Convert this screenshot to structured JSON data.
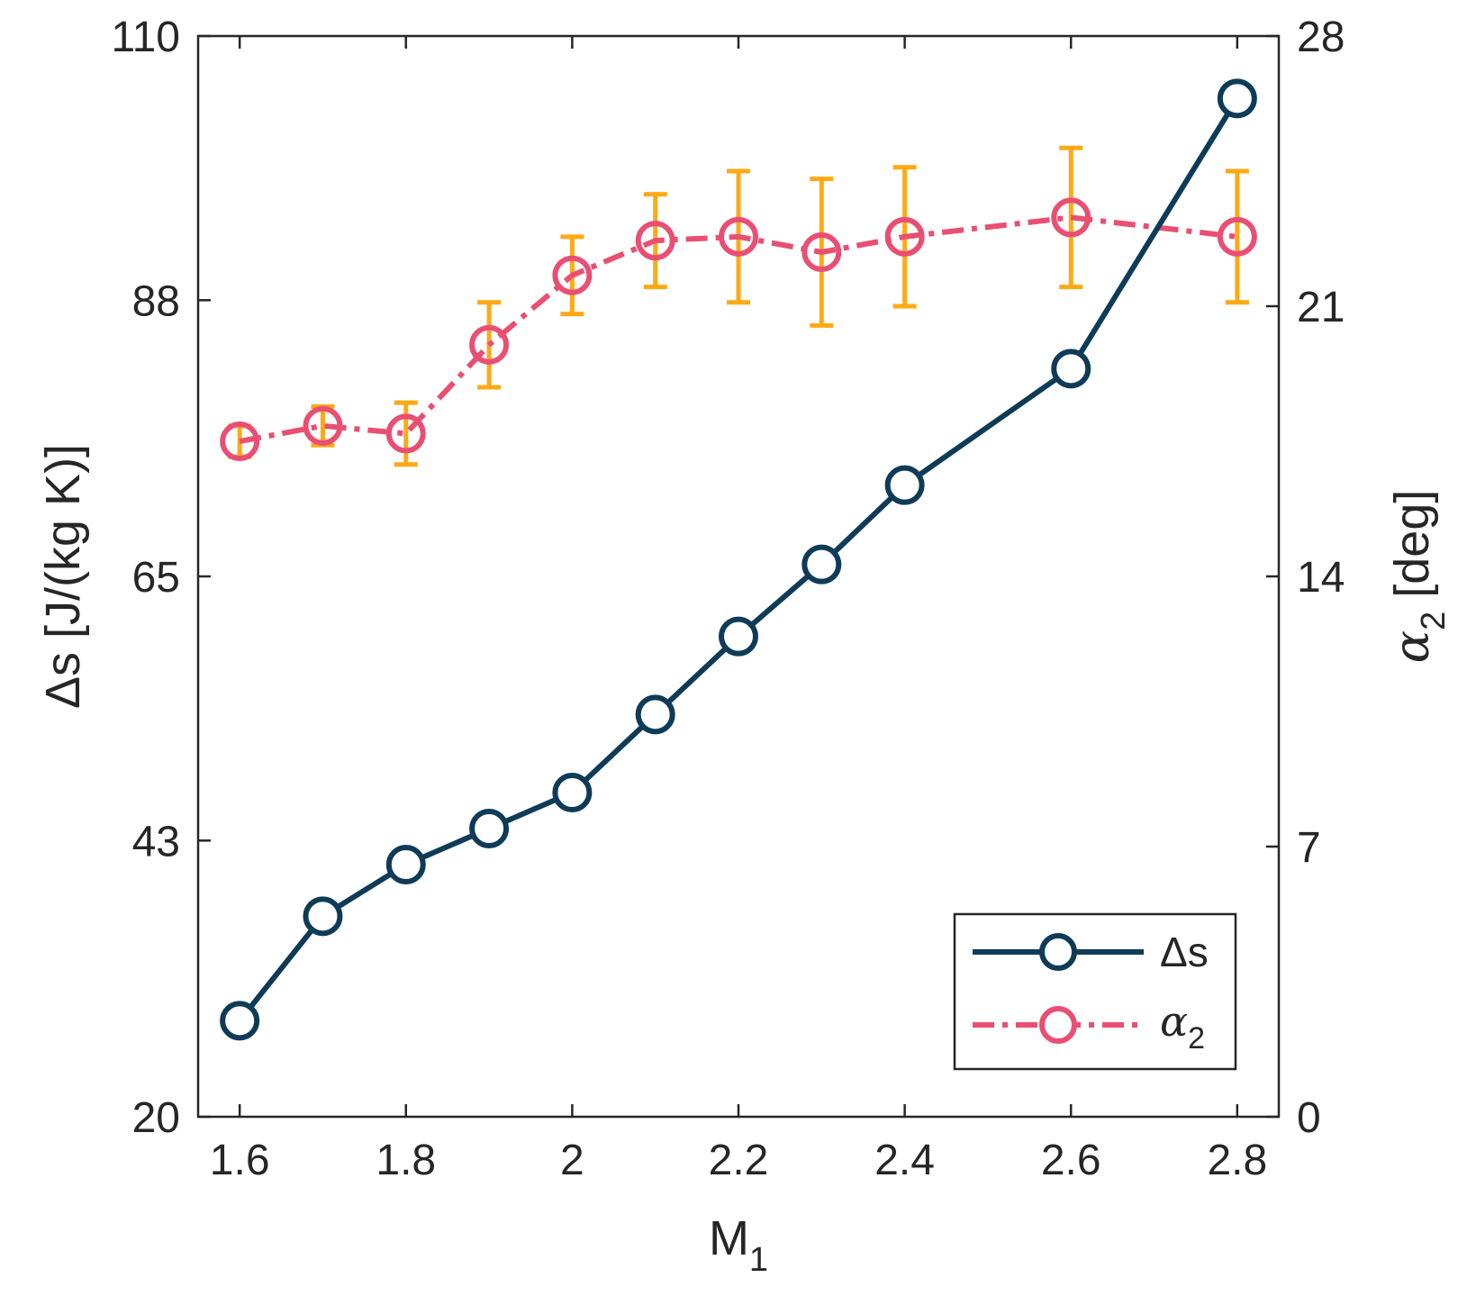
{
  "chart_data": {
    "type": "line",
    "x": [
      1.6,
      1.7,
      1.8,
      1.9,
      2.0,
      2.1,
      2.2,
      2.3,
      2.4,
      2.6,
      2.8
    ],
    "xlim": [
      1.55,
      2.85
    ],
    "xticks": [
      1.6,
      1.8,
      2.0,
      2.2,
      2.4,
      2.6,
      2.8
    ],
    "xtick_labels": [
      "1.6",
      "1.8",
      "2",
      "2.2",
      "2.4",
      "2.6",
      "2.8"
    ],
    "xlabel": {
      "main": "M",
      "sub": "1"
    },
    "left_axis": {
      "label": "Δs [J/(kg K)]",
      "ylim": [
        20,
        110
      ],
      "ticks": [
        20,
        43,
        65,
        88,
        110
      ],
      "tick_labels": [
        "20",
        "43",
        "65",
        "88",
        "110"
      ]
    },
    "right_axis": {
      "label": {
        "main": "α",
        "sub": "2",
        "unit": " [deg]"
      },
      "ylim": [
        0,
        28
      ],
      "ticks": [
        0,
        7,
        14,
        21,
        28
      ],
      "tick_labels": [
        "0",
        "7",
        "14",
        "21",
        "28"
      ]
    },
    "series": [
      {
        "name": "Δs",
        "axis": "left",
        "style": "solid",
        "marker": "circle",
        "color": "#0e3b57",
        "values": [
          28.0,
          36.7,
          41.0,
          44.0,
          47.0,
          53.5,
          60.0,
          66.0,
          72.6,
          82.3,
          104.8
        ]
      },
      {
        "name": "α",
        "name_sub": "2",
        "axis": "right",
        "style": "dash-dot",
        "marker": "circle",
        "color": "#e94f72",
        "errorbar_color": "#ffa914",
        "values": [
          17.5,
          17.9,
          17.7,
          20.0,
          21.8,
          22.7,
          22.8,
          22.4,
          22.8,
          23.3,
          22.8
        ],
        "error": [
          0.4,
          0.5,
          0.8,
          1.1,
          1.0,
          1.2,
          1.7,
          1.9,
          1.8,
          1.8,
          1.7
        ]
      }
    ],
    "legend": {
      "position": "bottom-right",
      "entries": [
        {
          "label": "Δs"
        },
        {
          "label": "α",
          "sub": "2"
        }
      ]
    }
  }
}
